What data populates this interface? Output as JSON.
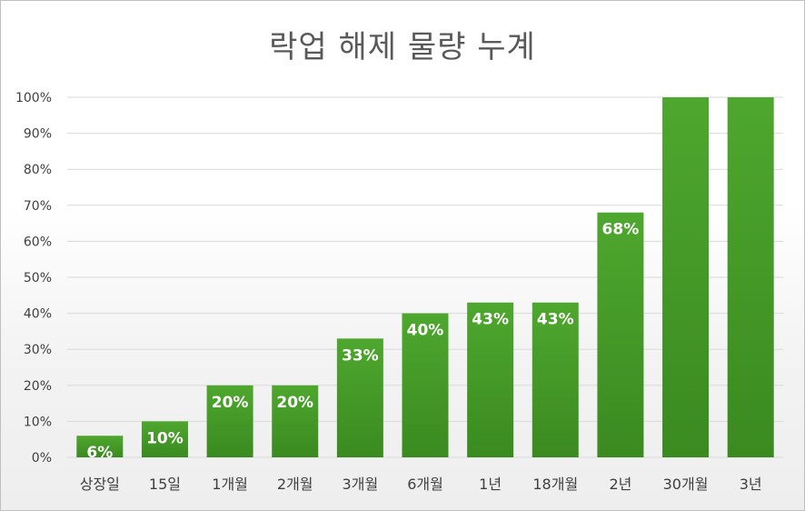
{
  "chart_data": {
    "type": "bar",
    "title": "락업 해제 물량 누계",
    "categories": [
      "상장일",
      "15일",
      "1개월",
      "2개월",
      "3개월",
      "6개월",
      "1년",
      "18개월",
      "2년",
      "30개월",
      "3년"
    ],
    "values": [
      6,
      10,
      20,
      20,
      33,
      40,
      43,
      43,
      68,
      100,
      100
    ],
    "data_labels": [
      "6%",
      "10%",
      "20%",
      "20%",
      "33%",
      "40%",
      "43%",
      "43%",
      "68%",
      "",
      ""
    ],
    "yticks": [
      "0%",
      "10%",
      "20%",
      "30%",
      "40%",
      "50%",
      "60%",
      "70%",
      "80%",
      "90%",
      "100%"
    ],
    "ylim": [
      0,
      100
    ],
    "xlabel": "",
    "ylabel": "",
    "grid": true,
    "legend": "none",
    "bar_color_top": "#4ea72e",
    "bar_color_bottom": "#3a8a20",
    "gridline_color": "#d9d9d9"
  }
}
